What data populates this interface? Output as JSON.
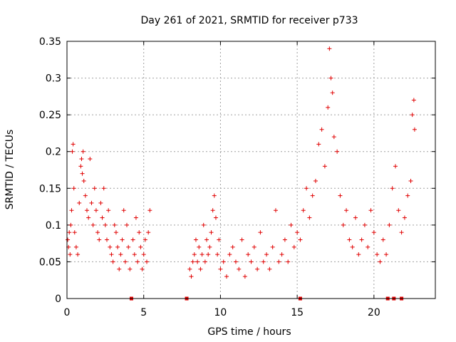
{
  "chart_data": {
    "type": "scatter",
    "title": "Day 261 of 2021, SRMTID for receiver p733",
    "xlabel": "GPS time / hours",
    "ylabel": "SRMTID / TECUs",
    "xlim": [
      0,
      24
    ],
    "ylim": [
      0,
      0.35
    ],
    "xticks": [
      0,
      5,
      10,
      15,
      20
    ],
    "xtick_labels": [
      "0",
      "5",
      "10",
      "15",
      "20"
    ],
    "yticks": [
      0,
      0.05,
      0.1,
      0.15,
      0.2,
      0.25,
      0.3,
      0.35
    ],
    "ytick_labels": [
      "0",
      "0.05",
      "0.1",
      "0.15",
      "0.2",
      "0.25",
      "0.3",
      "0.35"
    ],
    "grid": true,
    "marker": "plus",
    "color": "#e00000",
    "gap_markers": [
      4.2,
      7.8,
      15.2,
      20.9,
      21.3,
      21.8
    ],
    "series": [
      {
        "name": "SRMTID",
        "points": [
          [
            0.05,
            0.08
          ],
          [
            0.1,
            0.07
          ],
          [
            0.15,
            0.09
          ],
          [
            0.2,
            0.06
          ],
          [
            0.25,
            0.1
          ],
          [
            0.3,
            0.12
          ],
          [
            0.35,
            0.2
          ],
          [
            0.4,
            0.21
          ],
          [
            0.45,
            0.15
          ],
          [
            0.5,
            0.09
          ],
          [
            0.6,
            0.07
          ],
          [
            0.7,
            0.06
          ],
          [
            0.8,
            0.13
          ],
          [
            0.9,
            0.18
          ],
          [
            0.95,
            0.19
          ],
          [
            1.0,
            0.17
          ],
          [
            1.05,
            0.2
          ],
          [
            1.1,
            0.16
          ],
          [
            1.2,
            0.14
          ],
          [
            1.3,
            0.12
          ],
          [
            1.4,
            0.11
          ],
          [
            1.5,
            0.19
          ],
          [
            1.6,
            0.13
          ],
          [
            1.7,
            0.1
          ],
          [
            1.8,
            0.15
          ],
          [
            1.9,
            0.12
          ],
          [
            2.0,
            0.09
          ],
          [
            2.1,
            0.08
          ],
          [
            2.2,
            0.13
          ],
          [
            2.3,
            0.11
          ],
          [
            2.4,
            0.15
          ],
          [
            2.5,
            0.1
          ],
          [
            2.6,
            0.08
          ],
          [
            2.7,
            0.12
          ],
          [
            2.8,
            0.07
          ],
          [
            2.9,
            0.06
          ],
          [
            3.0,
            0.05
          ],
          [
            3.1,
            0.1
          ],
          [
            3.2,
            0.09
          ],
          [
            3.3,
            0.07
          ],
          [
            3.4,
            0.04
          ],
          [
            3.5,
            0.06
          ],
          [
            3.6,
            0.08
          ],
          [
            3.7,
            0.12
          ],
          [
            3.8,
            0.05
          ],
          [
            3.9,
            0.1
          ],
          [
            4.0,
            0.07
          ],
          [
            4.1,
            0.04
          ],
          [
            4.3,
            0.08
          ],
          [
            4.4,
            0.06
          ],
          [
            4.5,
            0.11
          ],
          [
            4.6,
            0.05
          ],
          [
            4.7,
            0.09
          ],
          [
            4.8,
            0.07
          ],
          [
            4.9,
            0.04
          ],
          [
            5.0,
            0.06
          ],
          [
            5.1,
            0.08
          ],
          [
            5.2,
            0.05
          ],
          [
            5.3,
            0.09
          ],
          [
            5.4,
            0.12
          ],
          [
            8.0,
            0.04
          ],
          [
            8.1,
            0.03
          ],
          [
            8.2,
            0.05
          ],
          [
            8.3,
            0.06
          ],
          [
            8.4,
            0.08
          ],
          [
            8.5,
            0.05
          ],
          [
            8.6,
            0.07
          ],
          [
            8.7,
            0.04
          ],
          [
            8.8,
            0.06
          ],
          [
            8.9,
            0.1
          ],
          [
            9.0,
            0.05
          ],
          [
            9.1,
            0.08
          ],
          [
            9.2,
            0.06
          ],
          [
            9.3,
            0.07
          ],
          [
            9.4,
            0.09
          ],
          [
            9.5,
            0.12
          ],
          [
            9.6,
            0.14
          ],
          [
            9.7,
            0.11
          ],
          [
            9.8,
            0.06
          ],
          [
            9.9,
            0.08
          ],
          [
            10.0,
            0.04
          ],
          [
            10.2,
            0.05
          ],
          [
            10.4,
            0.03
          ],
          [
            10.6,
            0.06
          ],
          [
            10.8,
            0.07
          ],
          [
            11.0,
            0.05
          ],
          [
            11.2,
            0.04
          ],
          [
            11.4,
            0.08
          ],
          [
            11.6,
            0.03
          ],
          [
            11.8,
            0.06
          ],
          [
            12.0,
            0.05
          ],
          [
            12.2,
            0.07
          ],
          [
            12.4,
            0.04
          ],
          [
            12.6,
            0.09
          ],
          [
            12.8,
            0.05
          ],
          [
            13.0,
            0.06
          ],
          [
            13.2,
            0.04
          ],
          [
            13.4,
            0.07
          ],
          [
            13.6,
            0.12
          ],
          [
            13.8,
            0.05
          ],
          [
            14.0,
            0.06
          ],
          [
            14.2,
            0.08
          ],
          [
            14.4,
            0.05
          ],
          [
            14.6,
            0.1
          ],
          [
            14.8,
            0.07
          ],
          [
            15.0,
            0.09
          ],
          [
            15.2,
            0.08
          ],
          [
            15.4,
            0.12
          ],
          [
            15.6,
            0.15
          ],
          [
            15.8,
            0.11
          ],
          [
            16.0,
            0.14
          ],
          [
            16.2,
            0.16
          ],
          [
            16.4,
            0.21
          ],
          [
            16.6,
            0.23
          ],
          [
            16.8,
            0.18
          ],
          [
            17.0,
            0.26
          ],
          [
            17.1,
            0.34
          ],
          [
            17.2,
            0.3
          ],
          [
            17.3,
            0.28
          ],
          [
            17.4,
            0.22
          ],
          [
            17.6,
            0.2
          ],
          [
            17.8,
            0.14
          ],
          [
            18.0,
            0.1
          ],
          [
            18.2,
            0.12
          ],
          [
            18.4,
            0.08
          ],
          [
            18.6,
            0.07
          ],
          [
            18.8,
            0.11
          ],
          [
            19.0,
            0.06
          ],
          [
            19.2,
            0.08
          ],
          [
            19.4,
            0.1
          ],
          [
            19.6,
            0.07
          ],
          [
            19.8,
            0.12
          ],
          [
            20.0,
            0.09
          ],
          [
            20.2,
            0.06
          ],
          [
            20.4,
            0.05
          ],
          [
            20.6,
            0.08
          ],
          [
            20.8,
            0.06
          ],
          [
            21.0,
            0.1
          ],
          [
            21.2,
            0.15
          ],
          [
            21.4,
            0.18
          ],
          [
            21.6,
            0.12
          ],
          [
            21.8,
            0.09
          ],
          [
            22.0,
            0.11
          ],
          [
            22.2,
            0.14
          ],
          [
            22.4,
            0.16
          ],
          [
            22.5,
            0.25
          ],
          [
            22.6,
            0.27
          ],
          [
            22.65,
            0.23
          ]
        ]
      }
    ]
  }
}
